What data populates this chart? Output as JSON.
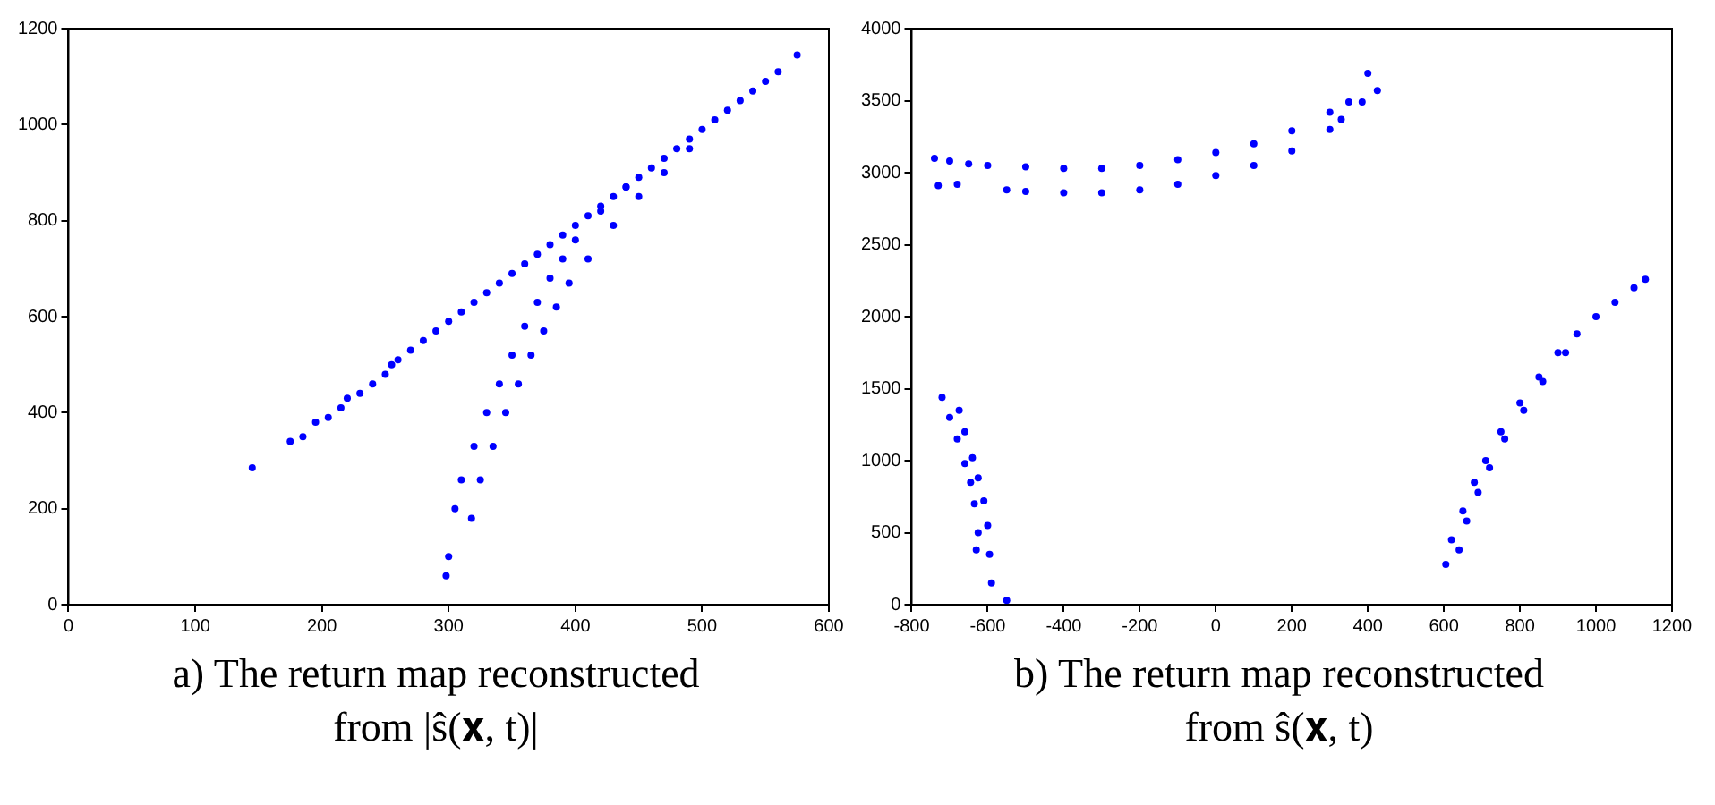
{
  "chart_data": [
    {
      "type": "scatter",
      "color": "#0000ff",
      "marker": "circle",
      "grid": false,
      "xlim": [
        0,
        600
      ],
      "ylim": [
        0,
        1200
      ],
      "xticks": [
        0,
        100,
        200,
        300,
        400,
        500,
        600
      ],
      "yticks": [
        0,
        200,
        400,
        600,
        800,
        1000,
        1200
      ],
      "annotations": [
        "a) The return map reconstructed from |ŝ(𝐱, t)|"
      ],
      "x": [
        145,
        175,
        185,
        195,
        205,
        215,
        220,
        230,
        240,
        250,
        255,
        260,
        270,
        280,
        290,
        300,
        310,
        320,
        330,
        340,
        350,
        360,
        370,
        380,
        390,
        400,
        410,
        420,
        430,
        440,
        450,
        460,
        470,
        480,
        490,
        500,
        510,
        520,
        530,
        540,
        550,
        560,
        575,
        298,
        300,
        305,
        310,
        320,
        330,
        340,
        350,
        360,
        370,
        380,
        390,
        400,
        420,
        440,
        318,
        325,
        335,
        345,
        355,
        365,
        375,
        385,
        395,
        410,
        430,
        450,
        470,
        490
      ],
      "values": [
        285,
        340,
        350,
        380,
        390,
        410,
        430,
        440,
        460,
        480,
        500,
        510,
        530,
        550,
        570,
        590,
        610,
        630,
        650,
        670,
        690,
        710,
        730,
        750,
        770,
        790,
        810,
        830,
        850,
        870,
        890,
        910,
        930,
        950,
        970,
        990,
        1010,
        1030,
        1050,
        1070,
        1090,
        1110,
        1145,
        60,
        100,
        200,
        260,
        330,
        400,
        460,
        520,
        580,
        630,
        680,
        720,
        760,
        820,
        870,
        180,
        260,
        330,
        400,
        460,
        520,
        570,
        620,
        670,
        720,
        790,
        850,
        900,
        950
      ]
    },
    {
      "type": "scatter",
      "color": "#0000ff",
      "marker": "circle",
      "grid": false,
      "xlim": [
        -800,
        1200
      ],
      "ylim": [
        0,
        4000
      ],
      "xticks": [
        -800,
        -600,
        -400,
        -200,
        0,
        200,
        400,
        600,
        800,
        1000,
        1200
      ],
      "yticks": [
        0,
        500,
        1000,
        1500,
        2000,
        2500,
        3000,
        3500,
        4000
      ],
      "annotations": [
        "b) The return map reconstructed from ŝ(𝐱, t)"
      ],
      "x": [
        -740,
        -700,
        -650,
        -600,
        -500,
        -400,
        -300,
        -200,
        -100,
        0,
        100,
        200,
        300,
        350,
        400,
        -730,
        -680,
        -550,
        -500,
        -400,
        -300,
        -200,
        -100,
        0,
        100,
        200,
        300,
        330,
        385,
        425,
        -720,
        -700,
        -680,
        -660,
        -645,
        -635,
        -625,
        -630,
        -675,
        -660,
        -640,
        -625,
        -610,
        -600,
        -595,
        -590,
        -550,
        605,
        620,
        650,
        680,
        710,
        750,
        800,
        850,
        900,
        950,
        1000,
        1050,
        1100,
        1130,
        640,
        660,
        690,
        720,
        760,
        810,
        860,
        920
      ],
      "values": [
        3100,
        3080,
        3060,
        3050,
        3040,
        3030,
        3030,
        3050,
        3090,
        3140,
        3200,
        3290,
        3420,
        3490,
        3690,
        2910,
        2920,
        2880,
        2870,
        2860,
        2860,
        2880,
        2920,
        2980,
        3050,
        3150,
        3300,
        3370,
        3490,
        3570,
        1440,
        1300,
        1150,
        980,
        850,
        700,
        500,
        380,
        1350,
        1200,
        1020,
        880,
        720,
        550,
        350,
        150,
        30,
        280,
        450,
        650,
        850,
        1000,
        1200,
        1400,
        1580,
        1750,
        1880,
        2000,
        2100,
        2200,
        2260,
        380,
        580,
        780,
        950,
        1150,
        1350,
        1550,
        1750
      ]
    }
  ]
}
